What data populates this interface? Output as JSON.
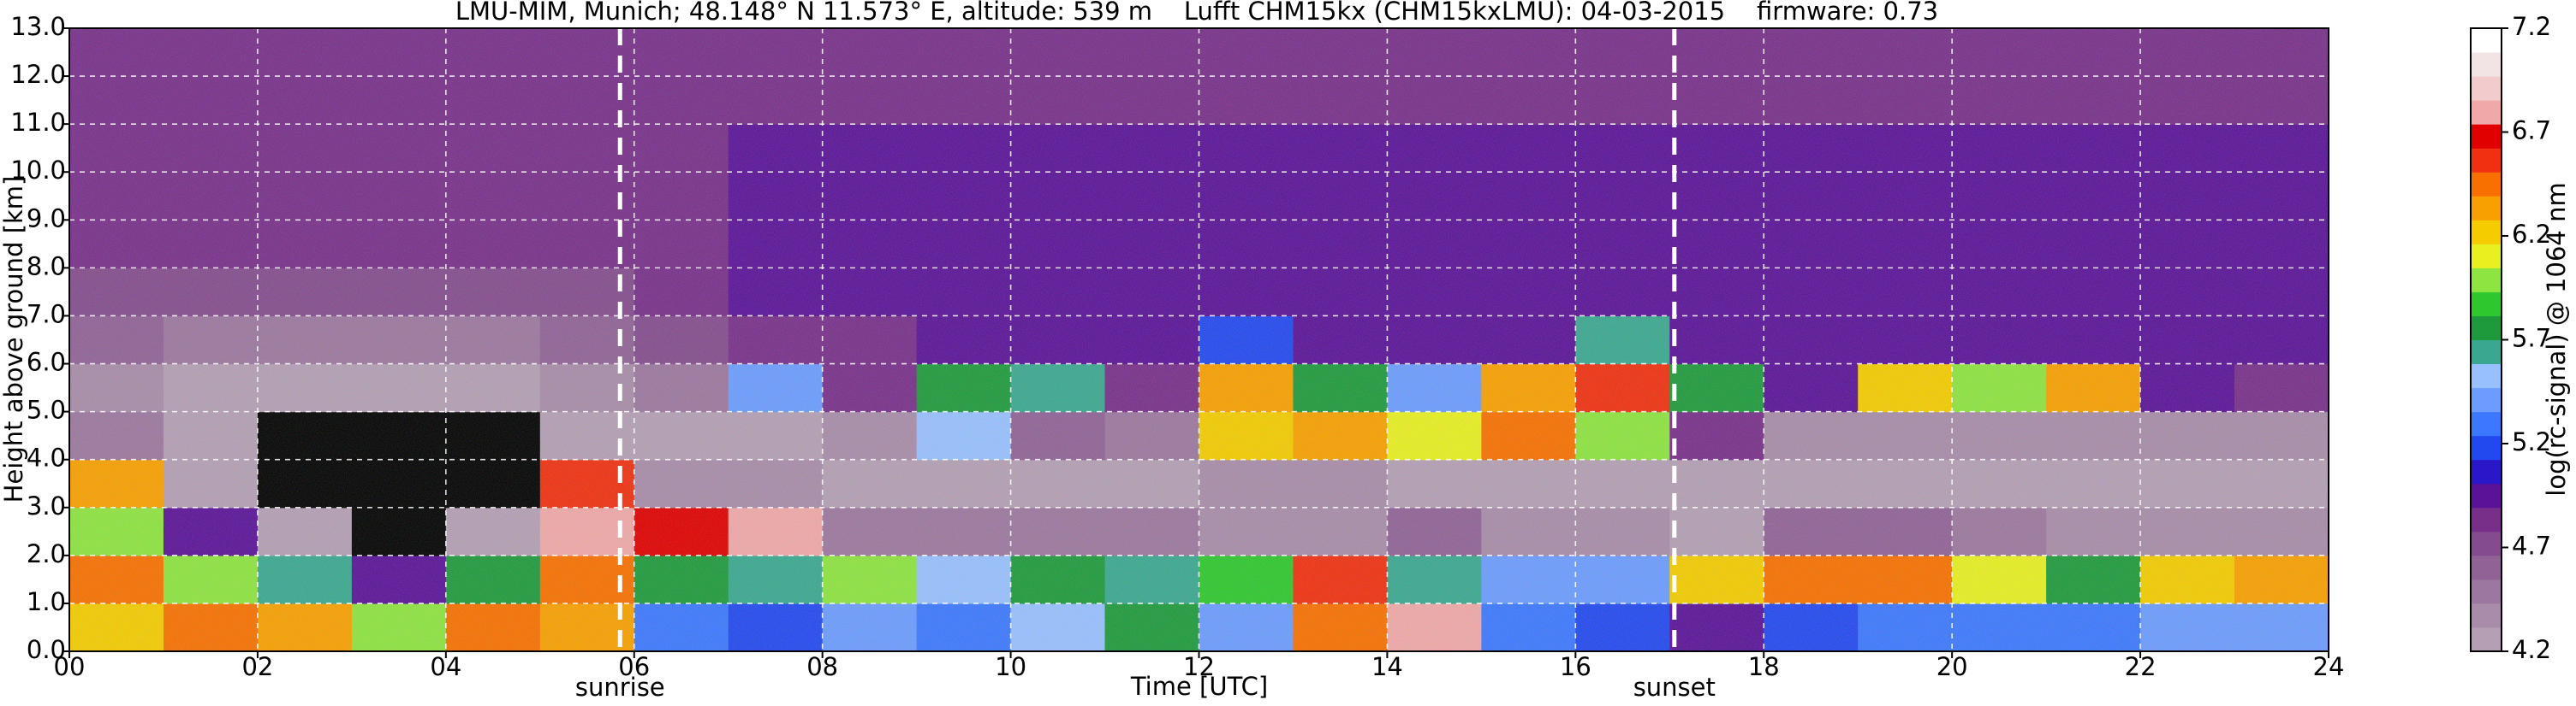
{
  "chart_data": {
    "type": "heatmap",
    "title": "LMU-MIM, Munich; 48.148° N 11.573° E, altitude: 539 m    Lufft CHM15kx (CHM15kxLMU): 04-03-2015    firmware: 0.73",
    "xlabel": "Time [UTC]",
    "ylabel": "Height above ground [km]",
    "colorbar_label": "log(rc-signal) @ 1064 nm",
    "xlim": [
      0,
      24
    ],
    "ylim": [
      0,
      13
    ],
    "zlim": [
      4.2,
      7.2
    ],
    "xticks": [
      {
        "value": 0,
        "label": "00"
      },
      {
        "value": 2,
        "label": "02"
      },
      {
        "value": 4,
        "label": "04"
      },
      {
        "value": 6,
        "label": "06"
      },
      {
        "value": 8,
        "label": "08"
      },
      10,
      12,
      14,
      16,
      18,
      20,
      22,
      24
    ],
    "yticks": [
      {
        "value": 0,
        "label": "0.0"
      },
      {
        "value": 1,
        "label": "1.0"
      },
      {
        "value": 2,
        "label": "2.0"
      },
      {
        "value": 3,
        "label": "3.0"
      },
      {
        "value": 4,
        "label": "4.0"
      },
      {
        "value": 5,
        "label": "5.0"
      },
      {
        "value": 6,
        "label": "6.0"
      },
      {
        "value": 7,
        "label": "7.0"
      },
      {
        "value": 8,
        "label": "8.0"
      },
      {
        "value": 9,
        "label": "9.0"
      },
      {
        "value": 10,
        "label": "10.0"
      },
      {
        "value": 11,
        "label": "11.0"
      },
      {
        "value": 12,
        "label": "12.0"
      },
      {
        "value": 13,
        "label": "13.0"
      }
    ],
    "zticks": [
      4.2,
      4.7,
      5.2,
      5.7,
      6.2,
      6.7,
      7.2
    ],
    "grid": true,
    "colorscale": [
      "#b49fb4",
      "#a88ca9",
      "#9c779f",
      "#906296",
      "#844c8e",
      "#782f8a",
      "#5a1298",
      "#2a18c8",
      "#2248f0",
      "#3c78ff",
      "#6c9cff",
      "#98c0ff",
      "#3aa890",
      "#1e9a3c",
      "#2ec82e",
      "#8ee440",
      "#e8f020",
      "#f4cc00",
      "#f8a000",
      "#f87000",
      "#f03010",
      "#e00000",
      "#f0a8a8",
      "#f2cccc",
      "#f2e4e4",
      "#ffffff"
    ],
    "annotations": [
      {
        "x": 5.85,
        "label": "sunrise"
      },
      {
        "x": 17.05,
        "label": "sunset"
      }
    ],
    "z": [
      [
        6.2,
        6.5,
        6.0,
        6.3,
        4.5,
        4.4,
        4.6,
        4.7,
        4.8,
        4.8,
        4.8,
        4.8,
        4.8
      ],
      [
        6.4,
        6.0,
        5.0,
        4.3,
        4.2,
        4.3,
        4.5,
        4.7,
        4.8,
        4.8,
        4.8,
        4.8,
        4.8
      ],
      [
        6.3,
        5.6,
        4.3,
        4.1,
        4.1,
        4.3,
        4.5,
        4.7,
        4.8,
        4.8,
        4.8,
        4.8,
        4.8
      ],
      [
        6.0,
        5.0,
        4.1,
        4.0,
        4.0,
        4.3,
        4.5,
        4.7,
        4.8,
        4.8,
        4.8,
        4.8,
        4.8
      ],
      [
        6.4,
        5.8,
        4.2,
        4.0,
        4.1,
        4.3,
        4.5,
        4.7,
        4.8,
        4.8,
        4.8,
        4.8,
        4.8
      ],
      [
        6.3,
        6.5,
        6.8,
        6.6,
        4.3,
        4.4,
        4.6,
        4.7,
        4.8,
        4.8,
        4.8,
        4.8,
        4.8
      ],
      [
        5.3,
        5.8,
        6.7,
        4.4,
        4.3,
        4.5,
        4.7,
        4.8,
        4.8,
        4.8,
        4.8,
        4.8,
        4.8
      ],
      [
        5.2,
        5.6,
        6.8,
        4.4,
        4.3,
        5.4,
        4.8,
        4.9,
        4.9,
        4.9,
        4.9,
        4.8,
        4.8
      ],
      [
        5.4,
        6.0,
        4.5,
        4.3,
        4.4,
        4.8,
        4.8,
        4.9,
        4.9,
        4.9,
        4.9,
        4.8,
        4.8
      ],
      [
        5.3,
        5.5,
        4.5,
        4.3,
        5.5,
        5.8,
        4.9,
        4.9,
        4.9,
        4.9,
        4.9,
        4.8,
        4.8
      ],
      [
        5.5,
        5.8,
        4.5,
        4.3,
        4.6,
        5.6,
        4.9,
        4.9,
        4.9,
        4.9,
        4.9,
        4.8,
        4.8
      ],
      [
        5.8,
        5.6,
        4.5,
        4.3,
        4.5,
        4.8,
        4.9,
        4.9,
        4.9,
        4.9,
        4.9,
        4.8,
        4.8
      ],
      [
        5.4,
        5.9,
        4.4,
        4.4,
        6.2,
        6.3,
        5.2,
        4.9,
        4.9,
        4.9,
        4.9,
        4.8,
        4.8
      ],
      [
        6.4,
        6.6,
        4.4,
        4.4,
        6.3,
        5.8,
        4.9,
        4.9,
        4.9,
        4.9,
        4.9,
        4.8,
        4.8
      ],
      [
        6.8,
        5.6,
        4.6,
        4.3,
        6.1,
        5.4,
        4.9,
        4.9,
        4.9,
        4.9,
        4.9,
        4.8,
        4.8
      ],
      [
        5.3,
        5.4,
        4.4,
        4.3,
        6.4,
        6.3,
        5.0,
        4.9,
        4.9,
        4.9,
        4.9,
        4.8,
        4.8
      ],
      [
        5.2,
        5.4,
        4.4,
        4.3,
        6.0,
        6.6,
        5.6,
        4.9,
        4.9,
        4.9,
        4.9,
        4.8,
        4.8
      ],
      [
        5.0,
        6.2,
        4.3,
        4.3,
        4.8,
        5.8,
        5.0,
        4.9,
        4.9,
        4.9,
        4.9,
        4.8,
        4.8
      ],
      [
        5.2,
        6.5,
        4.6,
        4.3,
        4.4,
        5.0,
        4.9,
        4.9,
        4.9,
        4.9,
        4.9,
        4.8,
        4.8
      ],
      [
        5.3,
        6.4,
        4.6,
        4.3,
        4.4,
        6.2,
        4.9,
        4.9,
        4.9,
        4.9,
        4.9,
        4.8,
        4.8
      ],
      [
        5.3,
        6.1,
        4.5,
        4.3,
        4.4,
        6.0,
        4.9,
        4.9,
        4.9,
        4.9,
        4.9,
        4.8,
        4.8
      ],
      [
        5.3,
        5.8,
        4.4,
        4.3,
        4.4,
        6.3,
        4.9,
        4.9,
        4.9,
        4.9,
        4.9,
        4.8,
        4.8
      ],
      [
        5.4,
        6.2,
        4.4,
        4.3,
        4.4,
        5.0,
        4.9,
        4.9,
        4.9,
        4.9,
        4.9,
        4.8,
        4.8
      ],
      [
        5.4,
        6.3,
        4.4,
        4.3,
        4.4,
        4.8,
        4.9,
        4.9,
        4.9,
        4.9,
        4.9,
        4.8,
        4.8
      ]
    ]
  }
}
